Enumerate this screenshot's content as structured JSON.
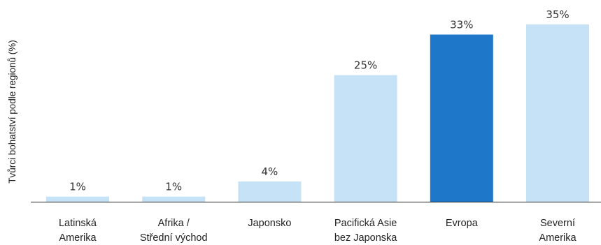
{
  "chart_data": {
    "type": "bar",
    "title": "",
    "xlabel": "",
    "ylabel": "Tvůrci bohatství podle regionů (%)",
    "categories": [
      [
        "Latinská",
        "Amerika"
      ],
      [
        "Afrika /",
        "Střední východ"
      ],
      [
        "Japonsko"
      ],
      [
        "Pacifická Asie",
        "bez Japonska"
      ],
      [
        "Evropa"
      ],
      [
        "Severní",
        "Amerika"
      ]
    ],
    "values": [
      1,
      1,
      4,
      25,
      33,
      35
    ],
    "value_labels": [
      "1%",
      "1%",
      "4%",
      "25%",
      "33%",
      "35%"
    ],
    "ylim": [
      0,
      35
    ],
    "grid": false,
    "highlight_index": 4,
    "colors": {
      "bar": "#c5e2f7",
      "highlight": "#1f77c9",
      "axis": "#222222"
    }
  }
}
